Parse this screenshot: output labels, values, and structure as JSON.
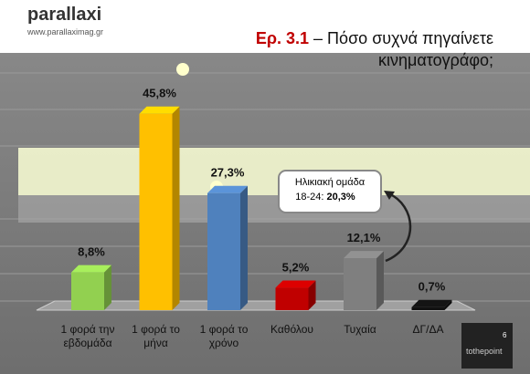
{
  "chart_data": {
    "type": "bar3d",
    "logo": "parallaxi",
    "website": "www.parallaximag.gr",
    "title_prefix": "Ερ. 3.1",
    "title": "– Πόσο συχνά πηγαίνετε κινηματογράφο;",
    "categories": [
      "1 φορά την εβδομάδα",
      "1 φορά το μήνα",
      "1 φορά το χρόνο",
      "Καθόλου",
      "Τυχαία",
      "ΔΓ/ΔΑ"
    ],
    "values": [
      8.8,
      45.8,
      27.3,
      5.2,
      12.1,
      0.7
    ],
    "value_labels": [
      "8,8%",
      "45,8%",
      "27,3%",
      "5,2%",
      "12,1%",
      "0,7%"
    ],
    "colors": [
      "#92d050",
      "#ffc000",
      "#4f81bd",
      "#c00000",
      "#7f7f7f",
      "#111111"
    ],
    "ylim": [
      0,
      50
    ],
    "annotation": {
      "text": "Ηλικιακή ομάδα 18-24:",
      "value": "20,3%"
    },
    "footer": {
      "page": "6",
      "brand": "tothepoint"
    }
  }
}
